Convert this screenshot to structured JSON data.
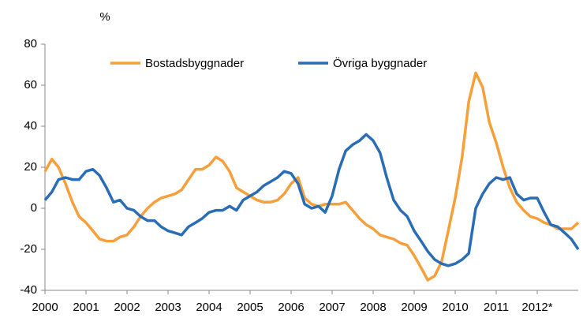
{
  "chart_data": {
    "type": "line",
    "y_label": "%",
    "xlim": [
      2000,
      2013
    ],
    "xticks": [
      2000,
      2001,
      2002,
      2003,
      2004,
      2005,
      2006,
      2007,
      2008,
      2009,
      2010,
      2011,
      {
        "value": 2012,
        "label": "2012*"
      }
    ],
    "ylim": [
      -40,
      80
    ],
    "yticks": [
      -40,
      -20,
      0,
      20,
      40,
      60,
      80
    ],
    "grid": false,
    "legend": "top",
    "x": [
      2000,
      2000.17,
      2000.33,
      2000.5,
      2000.67,
      2000.83,
      2001,
      2001.17,
      2001.33,
      2001.5,
      2001.67,
      2001.83,
      2002,
      2002.17,
      2002.33,
      2002.5,
      2002.67,
      2002.83,
      2003,
      2003.17,
      2003.33,
      2003.5,
      2003.67,
      2003.83,
      2004,
      2004.17,
      2004.33,
      2004.5,
      2004.67,
      2004.83,
      2005,
      2005.17,
      2005.33,
      2005.5,
      2005.67,
      2005.83,
      2006,
      2006.17,
      2006.33,
      2006.5,
      2006.67,
      2006.83,
      2007,
      2007.17,
      2007.33,
      2007.5,
      2007.67,
      2007.83,
      2008,
      2008.17,
      2008.33,
      2008.5,
      2008.67,
      2008.83,
      2009,
      2009.17,
      2009.33,
      2009.5,
      2009.67,
      2009.83,
      2010,
      2010.17,
      2010.33,
      2010.5,
      2010.67,
      2010.83,
      2011,
      2011.17,
      2011.33,
      2011.5,
      2011.67,
      2011.83,
      2012,
      2012.17,
      2012.33,
      2012.5,
      2012.67,
      2012.83,
      2013
    ],
    "series": [
      {
        "name": "Bostadsbyggnader",
        "color": "#f5a03a",
        "values": [
          18,
          24,
          20,
          12,
          3,
          -4,
          -7,
          -11,
          -15,
          -16,
          -16,
          -14,
          -13,
          -9,
          -4,
          0,
          3,
          5,
          6,
          7,
          9,
          14,
          19,
          19,
          21,
          25,
          23,
          18,
          10,
          8,
          6,
          4,
          3,
          3,
          4,
          7,
          12,
          15,
          5,
          2,
          1,
          2,
          2,
          2,
          3,
          -1,
          -5,
          -8,
          -10,
          -13,
          -14,
          -15,
          -17,
          -18,
          -23,
          -29,
          -35,
          -33,
          -26,
          -11,
          5,
          25,
          52,
          66,
          59,
          42,
          32,
          20,
          10,
          3,
          -1,
          -4,
          -5,
          -7,
          -8,
          -10,
          -10,
          -10,
          -7
        ]
      },
      {
        "name": "Övriga byggnader",
        "color": "#2a6db5",
        "values": [
          4,
          8,
          14,
          15,
          14,
          14,
          18,
          19,
          16,
          10,
          3,
          4,
          0,
          -1,
          -4,
          -6,
          -6,
          -9,
          -11,
          -12,
          -13,
          -9,
          -7,
          -5,
          -2,
          -1,
          -1,
          1,
          -1,
          4,
          6,
          8,
          11,
          13,
          15,
          18,
          17,
          12,
          2,
          0,
          1,
          -2,
          6,
          19,
          28,
          31,
          33,
          36,
          33,
          27,
          15,
          4,
          -1,
          -4,
          -11,
          -16,
          -21,
          -25,
          -27,
          -28,
          -27,
          -25,
          -22,
          0,
          7,
          12,
          15,
          14,
          15,
          7,
          4,
          5,
          5,
          -2,
          -8,
          -9,
          -12,
          -15,
          -20
        ]
      }
    ]
  }
}
